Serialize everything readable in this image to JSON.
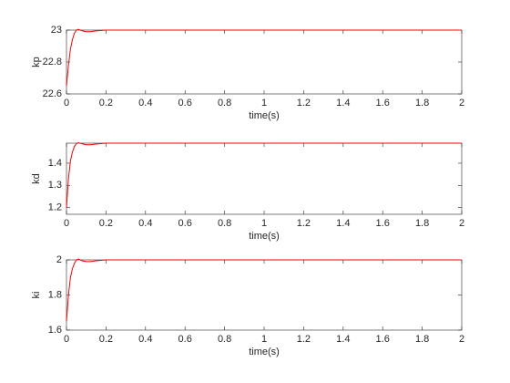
{
  "chart_data": [
    {
      "type": "line",
      "ylabel": "kp",
      "xlabel": "time(s)",
      "color": "#ff0000",
      "x": [
        0,
        0.01,
        0.02,
        0.03,
        0.04,
        0.05,
        0.06,
        0.08,
        0.1,
        0.12,
        0.15,
        0.2,
        0.3,
        2
      ],
      "values": [
        22.65,
        22.78,
        22.88,
        22.94,
        22.98,
        23.0,
        23.005,
        22.995,
        22.99,
        22.99,
        22.995,
        23.0,
        23.0,
        23.0
      ],
      "xlim": [
        0,
        2
      ],
      "xticks": [
        0,
        0.2,
        0.4,
        0.6,
        0.8,
        1,
        1.2,
        1.4,
        1.6,
        1.8,
        2
      ],
      "ylim": [
        22.6,
        23
      ],
      "yticks": [
        22.6,
        22.8,
        23
      ]
    },
    {
      "type": "line",
      "ylabel": "kd",
      "xlabel": "time(s)",
      "color": "#ff0000",
      "x": [
        0,
        0.01,
        0.02,
        0.03,
        0.04,
        0.05,
        0.06,
        0.08,
        0.1,
        0.12,
        0.15,
        0.2,
        0.3,
        2
      ],
      "values": [
        1.2,
        1.33,
        1.41,
        1.45,
        1.475,
        1.488,
        1.492,
        1.487,
        1.483,
        1.483,
        1.486,
        1.49,
        1.49,
        1.49
      ],
      "xlim": [
        0,
        2
      ],
      "xticks": [
        0,
        0.2,
        0.4,
        0.6,
        0.8,
        1,
        1.2,
        1.4,
        1.6,
        1.8,
        2
      ],
      "ylim": [
        1.17,
        1.49
      ],
      "yticks": [
        1.2,
        1.3,
        1.4
      ]
    },
    {
      "type": "line",
      "ylabel": "ki",
      "xlabel": "time(s)",
      "color": "#ff0000",
      "x": [
        0,
        0.01,
        0.02,
        0.03,
        0.04,
        0.05,
        0.06,
        0.08,
        0.1,
        0.12,
        0.15,
        0.2,
        0.3,
        2
      ],
      "values": [
        1.65,
        1.8,
        1.9,
        1.95,
        1.98,
        2.0,
        2.005,
        1.995,
        1.99,
        1.99,
        1.995,
        2.0,
        2.0,
        2.0
      ],
      "xlim": [
        0,
        2
      ],
      "xticks": [
        0,
        0.2,
        0.4,
        0.6,
        0.8,
        1,
        1.2,
        1.4,
        1.6,
        1.8,
        2
      ],
      "ylim": [
        1.6,
        2
      ],
      "yticks": [
        1.6,
        1.8,
        2
      ]
    }
  ]
}
